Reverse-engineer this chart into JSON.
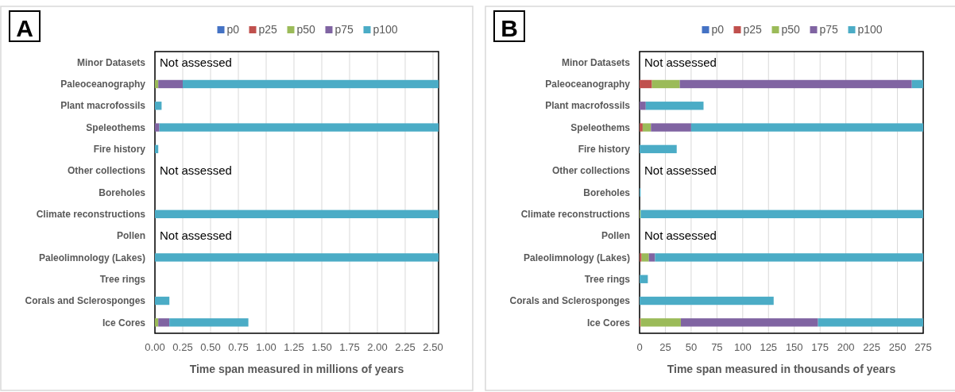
{
  "chart_data": [
    {
      "type": "bar",
      "title": "A",
      "orientation": "horizontal",
      "stacked": true,
      "xlabel": "Time span measured in millions of years",
      "categories": [
        "Minor Datasets",
        "Paleoceanography",
        "Plant macrofossils",
        "Speleothems",
        "Fire history",
        "Other collections",
        "Boreholes",
        "Climate reconstructions",
        "Pollen",
        "Paleolimnology (Lakes)",
        "Tree rings",
        "Corals and Sclerosponges",
        "Ice Cores"
      ],
      "series": [
        {
          "name": "p0",
          "color": "#4472c4",
          "values": [
            null,
            null,
            null,
            null,
            null,
            null,
            null,
            null,
            null,
            null,
            null,
            null,
            null
          ]
        },
        {
          "name": "p25",
          "color": "#c0504d",
          "values": [
            null,
            null,
            null,
            null,
            null,
            null,
            null,
            null,
            null,
            null,
            null,
            null,
            null
          ]
        },
        {
          "name": "p50",
          "color": "#9bbb59",
          "values": [
            null,
            0.03,
            null,
            null,
            null,
            null,
            null,
            null,
            null,
            null,
            null,
            null,
            0.03
          ]
        },
        {
          "name": "p75",
          "color": "#8064a2",
          "values": [
            null,
            0.22,
            null,
            0.04,
            null,
            null,
            null,
            null,
            null,
            null,
            null,
            null,
            0.1
          ]
        },
        {
          "name": "p100",
          "color": "#4bacc6",
          "values": [
            null,
            2.3,
            0.06,
            2.51,
            0.03,
            null,
            null,
            2.55,
            null,
            2.55,
            null,
            0.13,
            0.71
          ]
        }
      ],
      "xlim": [
        0,
        2.55
      ],
      "xticks": [
        {
          "value": 0,
          "label": "0.00"
        },
        {
          "value": 0.25,
          "label": "0.25"
        },
        {
          "value": 0.5,
          "label": "0.50"
        },
        {
          "value": 0.75,
          "label": "0.75"
        },
        {
          "value": 1,
          "label": "1.00"
        },
        {
          "value": 1.25,
          "label": "1.25"
        },
        {
          "value": 1.5,
          "label": "1.50"
        },
        {
          "value": 1.75,
          "label": "1.75"
        },
        {
          "value": 2,
          "label": "2.00"
        },
        {
          "value": 2.25,
          "label": "2.25"
        },
        {
          "value": 2.5,
          "label": "2.50"
        }
      ],
      "grid": "x",
      "legend": "top",
      "annotations": [
        "Not assessed",
        "Not assessed",
        "Not assessed"
      ]
    },
    {
      "type": "bar",
      "title": "B",
      "orientation": "horizontal",
      "stacked": true,
      "xlabel": "Time span measured in thousands of years",
      "categories": [
        "Minor Datasets",
        "Paleoceanography",
        "Plant macrofossils",
        "Speleothems",
        "Fire history",
        "Other collections",
        "Boreholes",
        "Climate reconstructions",
        "Pollen",
        "Paleolimnology (Lakes)",
        "Tree rings",
        "Corals and Sclerosponges",
        "Ice Cores"
      ],
      "series": [
        {
          "name": "p0",
          "color": "#4472c4",
          "values": [
            null,
            null,
            null,
            null,
            null,
            null,
            null,
            null,
            null,
            null,
            null,
            null,
            null
          ]
        },
        {
          "name": "p25",
          "color": "#c0504d",
          "values": [
            null,
            12,
            null,
            3,
            null,
            null,
            null,
            null,
            null,
            2,
            null,
            null,
            1
          ]
        },
        {
          "name": "p50",
          "color": "#9bbb59",
          "values": [
            null,
            27,
            null,
            8,
            null,
            null,
            null,
            1,
            null,
            7,
            null,
            null,
            39
          ]
        },
        {
          "name": "p75",
          "color": "#8064a2",
          "values": [
            null,
            225,
            6,
            39,
            null,
            null,
            null,
            null,
            null,
            6,
            null,
            null,
            133
          ]
        },
        {
          "name": "p100",
          "color": "#4bacc6",
          "values": [
            null,
            11,
            56,
            225,
            36,
            null,
            1,
            274,
            null,
            260,
            8,
            130,
            102
          ]
        }
      ],
      "xlim": [
        0,
        275
      ],
      "xticks": [
        0,
        25,
        50,
        75,
        100,
        125,
        150,
        175,
        200,
        225,
        250,
        275
      ],
      "grid": "x",
      "legend": "top",
      "annotations": [
        "Not assessed",
        "Not assessed",
        "Not assessed"
      ]
    }
  ]
}
